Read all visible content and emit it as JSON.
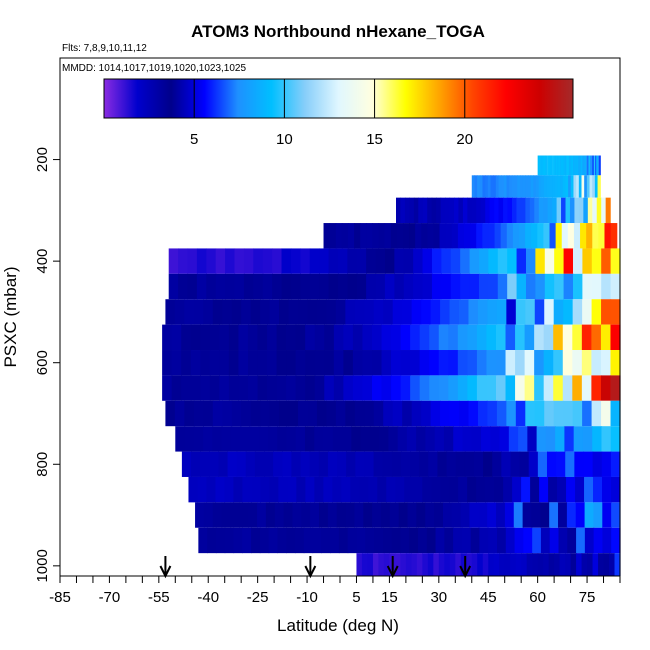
{
  "chart_data": {
    "type": "heatmap",
    "title": "ATOM3 Northbound nHexane_TOGA",
    "flights_label": "Flts: 7,8,9,10,11,12",
    "mmdd_label": "MMDD: 1014,1017,1019,1020,1023,1025",
    "xlabel": "Latitude (deg N)",
    "ylabel": "PSXC (mbar)",
    "xlim": [
      -85,
      85
    ],
    "ylim": [
      1020,
      0
    ],
    "x_ticks": [
      -85,
      -70,
      -55,
      -40,
      -25,
      -10,
      5,
      15,
      30,
      45,
      60,
      75
    ],
    "y_ticks": [
      200,
      400,
      600,
      800,
      1000
    ],
    "colorbar": {
      "range": [
        0,
        26
      ],
      "ticks": [
        5,
        10,
        15,
        20
      ],
      "colors": [
        "#8a2be2",
        "#0000cd",
        "#00008b",
        "#0000ff",
        "#1e90ff",
        "#00bfff",
        "#87cefa",
        "#e0f7ff",
        "#ffffe0",
        "#ffff00",
        "#ffa500",
        "#ff4500",
        "#ff0000",
        "#cd0000",
        "#a52a2a"
      ]
    },
    "arrows_latitude": [
      -53,
      -9,
      16,
      38
    ],
    "layers": [
      {
        "p": 212,
        "lat_min": 60,
        "lat_max": 79,
        "left": 9,
        "right": 7
      },
      {
        "p": 250,
        "lat_min": 40,
        "lat_max": 79,
        "left": 7,
        "right": 12
      },
      {
        "p": 300,
        "lat_min": 17,
        "lat_max": 82,
        "left": 4,
        "right": 15
      },
      {
        "p": 350,
        "lat_min": -5,
        "lat_max": 84,
        "left": 3,
        "right": 18
      },
      {
        "p": 400,
        "lat_min": -52,
        "lat_max": 85,
        "left": 1,
        "right": 22
      },
      {
        "p": 450,
        "lat_min": -52,
        "lat_max": 85,
        "left": 3,
        "right": 12
      },
      {
        "p": 500,
        "lat_min": -53,
        "lat_max": 85,
        "left": 3,
        "right": 16
      },
      {
        "p": 550,
        "lat_min": -54,
        "lat_max": 85,
        "left": 3,
        "right": 19
      },
      {
        "p": 600,
        "lat_min": -54,
        "lat_max": 85,
        "left": 3,
        "right": 14
      },
      {
        "p": 650,
        "lat_min": -54,
        "lat_max": 85,
        "left": 3,
        "right": 22
      },
      {
        "p": 700,
        "lat_min": -53,
        "lat_max": 85,
        "left": 3,
        "right": 11
      },
      {
        "p": 750,
        "lat_min": -50,
        "lat_max": 85,
        "left": 3,
        "right": 8
      },
      {
        "p": 800,
        "lat_min": -48,
        "lat_max": 85,
        "left": 2,
        "right": 7
      },
      {
        "p": 850,
        "lat_min": -46,
        "lat_max": 85,
        "left": 2,
        "right": 6
      },
      {
        "p": 900,
        "lat_min": -44,
        "lat_max": 85,
        "left": 3,
        "right": 7
      },
      {
        "p": 950,
        "lat_min": -43,
        "lat_max": 85,
        "left": 3,
        "right": 6
      },
      {
        "p": 1000,
        "lat_min": 5,
        "lat_max": 85,
        "left": 1,
        "right": 5
      }
    ]
  }
}
